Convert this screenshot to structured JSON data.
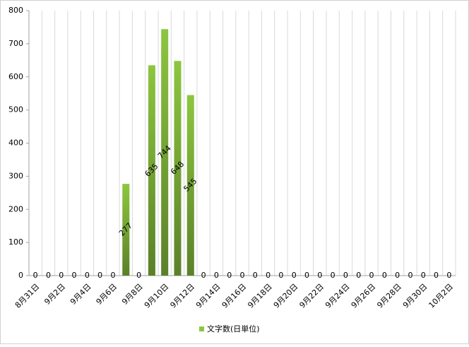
{
  "chart_data": {
    "type": "bar",
    "categories": [
      "8月31日",
      null,
      "9月2日",
      null,
      "9月4日",
      null,
      "9月6日",
      null,
      "9月8日",
      null,
      "9月10日",
      null,
      "9月12日",
      null,
      "9月14日",
      null,
      "9月16日",
      null,
      "9月18日",
      null,
      "9月20日",
      null,
      "9月22日",
      null,
      "9月24日",
      null,
      "9月26日",
      null,
      "9月28日",
      null,
      "9月30日",
      null,
      "10月2日"
    ],
    "series": [
      {
        "name": "文字数(日単位)",
        "color": "#8cc63f",
        "values": [
          0,
          0,
          0,
          0,
          0,
          0,
          0,
          277,
          0,
          635,
          744,
          648,
          545,
          0,
          0,
          0,
          0,
          0,
          0,
          0,
          0,
          0,
          0,
          0,
          0,
          0,
          0,
          0,
          0,
          0,
          0,
          0,
          0
        ]
      }
    ],
    "ylim": [
      0,
      800
    ],
    "yticks": [
      0,
      100,
      200,
      300,
      400,
      500,
      600,
      700,
      800
    ],
    "grid": true,
    "legend": "bottom"
  }
}
